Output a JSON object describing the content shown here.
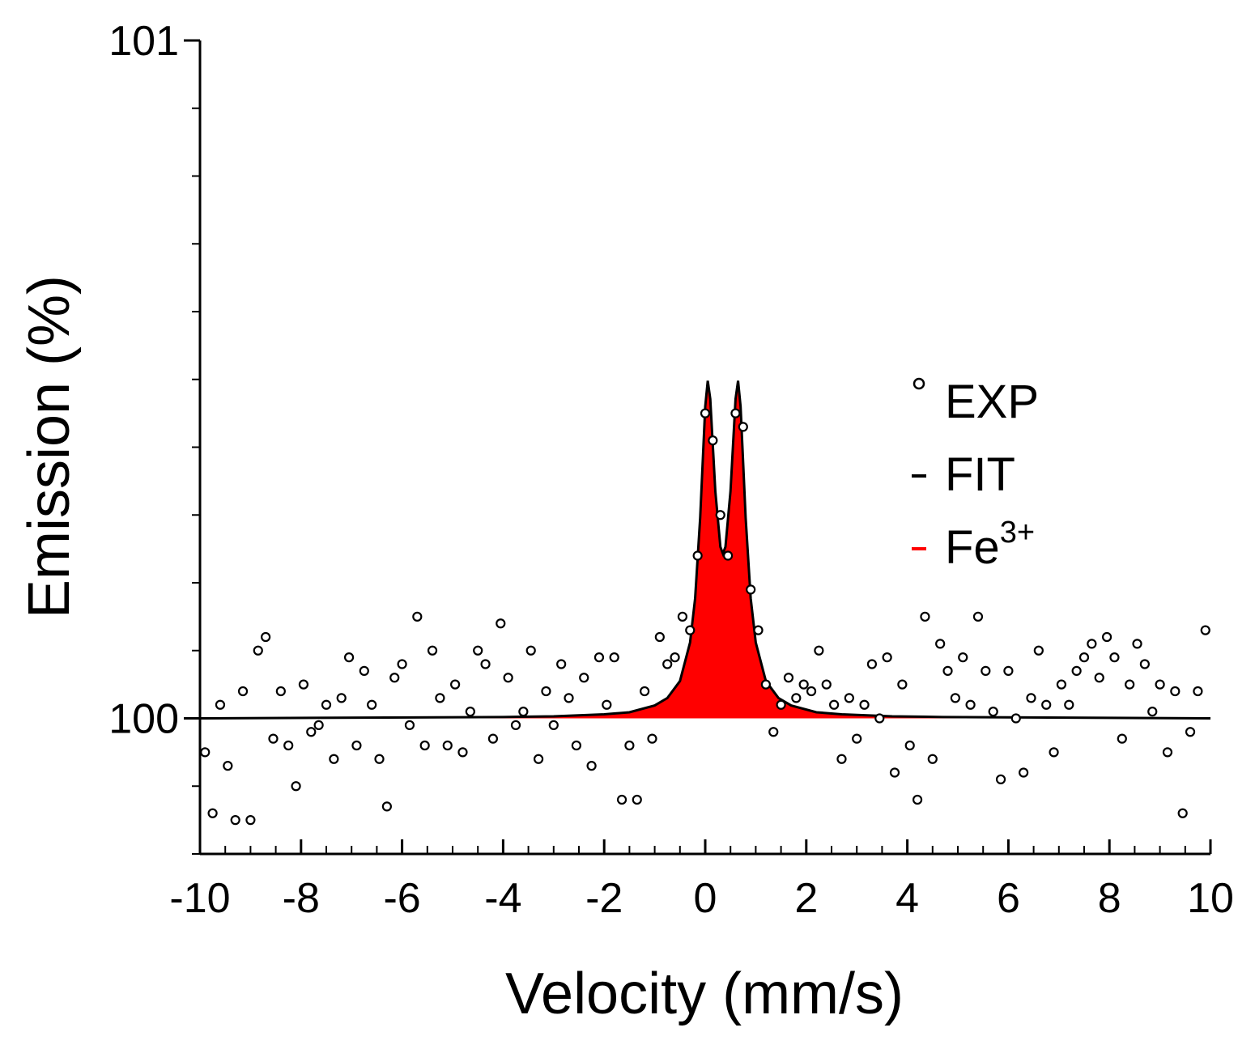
{
  "chart_data": {
    "type": "scatter",
    "xlabel": "Velocity (mm/s)",
    "ylabel": "Emission (%)",
    "xlim": [
      -10,
      10
    ],
    "xticks": [
      -10,
      -8,
      -6,
      -4,
      -2,
      0,
      2,
      4,
      6,
      8,
      10
    ],
    "xminorticks": [
      -9.5,
      -9,
      -8.5,
      -7.5,
      -7,
      -6.5,
      -5.5,
      -5,
      -4.5,
      -3.5,
      -3,
      -2.5,
      -1.5,
      -1,
      -0.5,
      0.5,
      1,
      1.5,
      2.5,
      3,
      3.5,
      4.5,
      5,
      5.5,
      6.5,
      7,
      7.5,
      8.5,
      9,
      9.5
    ],
    "ylim": [
      99.8,
      101
    ],
    "yticks": [
      100,
      101
    ],
    "yminorticks": [
      99.8,
      99.9,
      100.1,
      100.2,
      100.3,
      100.4,
      100.5,
      100.6,
      100.7,
      100.8,
      100.9
    ],
    "grid": false,
    "legend": "upper right",
    "series": [
      {
        "name": "EXP",
        "style": "markers",
        "color": "#000000",
        "x": [
          -9.9,
          -9.75,
          -9.6,
          -9.45,
          -9.3,
          -9.15,
          -9.0,
          -8.85,
          -8.7,
          -8.55,
          -8.4,
          -8.25,
          -8.1,
          -7.95,
          -7.8,
          -7.65,
          -7.5,
          -7.35,
          -7.2,
          -7.05,
          -6.9,
          -6.75,
          -6.6,
          -6.45,
          -6.3,
          -6.15,
          -6.0,
          -5.85,
          -5.7,
          -5.55,
          -5.4,
          -5.25,
          -5.1,
          -4.95,
          -4.8,
          -4.65,
          -4.5,
          -4.35,
          -4.2,
          -4.05,
          -3.9,
          -3.75,
          -3.6,
          -3.45,
          -3.3,
          -3.15,
          -3.0,
          -2.85,
          -2.7,
          -2.55,
          -2.4,
          -2.25,
          -2.1,
          -1.95,
          -1.8,
          -1.65,
          -1.5,
          -1.35,
          -1.2,
          -1.05,
          -0.9,
          -0.75,
          -0.6,
          -0.45,
          -0.3,
          -0.15,
          0,
          0.15,
          0.3,
          0.45,
          0.6,
          0.75,
          0.9,
          1.05,
          1.2,
          1.35,
          1.5,
          1.65,
          1.8,
          1.95,
          2.1,
          2.25,
          2.4,
          2.55,
          2.7,
          2.85,
          3.0,
          3.15,
          3.3,
          3.45,
          3.6,
          3.75,
          3.9,
          4.05,
          4.2,
          4.35,
          4.5,
          4.65,
          4.8,
          4.95,
          5.1,
          5.25,
          5.4,
          5.55,
          5.7,
          5.85,
          6.0,
          6.15,
          6.3,
          6.45,
          6.6,
          6.75,
          6.9,
          7.05,
          7.2,
          7.35,
          7.5,
          7.65,
          7.8,
          7.95,
          8.1,
          8.25,
          8.4,
          8.55,
          8.7,
          8.85,
          9.0,
          9.15,
          9.3,
          9.45,
          9.6,
          9.75,
          9.9
        ],
        "values": [
          99.95,
          99.86,
          100.02,
          99.93,
          99.85,
          100.04,
          99.85,
          100.1,
          100.12,
          99.97,
          100.04,
          99.96,
          99.9,
          100.05,
          99.98,
          99.99,
          100.02,
          99.94,
          100.03,
          100.09,
          99.96,
          100.07,
          100.02,
          99.94,
          99.87,
          100.06,
          100.08,
          99.99,
          100.15,
          99.96,
          100.1,
          100.03,
          99.96,
          100.05,
          99.95,
          100.01,
          100.1,
          100.08,
          99.97,
          100.14,
          100.06,
          99.99,
          100.01,
          100.1,
          99.94,
          100.04,
          99.99,
          100.08,
          100.03,
          99.96,
          100.06,
          99.93,
          100.09,
          100.02,
          100.09,
          99.88,
          99.96,
          99.88,
          100.04,
          99.97,
          100.12,
          100.08,
          100.09,
          100.15,
          100.13,
          100.24,
          100.45,
          100.41,
          100.3,
          100.24,
          100.45,
          100.43,
          100.19,
          100.13,
          100.05,
          99.98,
          100.02,
          100.06,
          100.03,
          100.05,
          100.04,
          100.1,
          100.05,
          100.02,
          99.94,
          100.03,
          99.97,
          100.02,
          100.08,
          100.0,
          100.09,
          99.92,
          100.05,
          99.96,
          99.88,
          100.15,
          99.94,
          100.11,
          100.07,
          100.03,
          100.09,
          100.02,
          100.15,
          100.07,
          100.01,
          99.91,
          100.07,
          100.0,
          99.92,
          100.03,
          100.1,
          100.02,
          99.95,
          100.05,
          100.02,
          100.07,
          100.09,
          100.11,
          100.06,
          100.12,
          100.09,
          99.97,
          100.05,
          100.11,
          100.08,
          100.01,
          100.05,
          99.95,
          100.04,
          99.86,
          99.98,
          100.04,
          100.13
        ]
      },
      {
        "name": "FIT",
        "style": "line",
        "color": "#000000",
        "x": [
          -10,
          -4,
          -3,
          -2,
          -1.5,
          -1,
          -0.75,
          -0.5,
          -0.3,
          -0.2,
          -0.1,
          0,
          0.05,
          0.1,
          0.2,
          0.3,
          0.35,
          0.4,
          0.5,
          0.6,
          0.65,
          0.7,
          0.8,
          0.9,
          1,
          1.2,
          1.45,
          1.7,
          2.2,
          2.7,
          3.7,
          4.7,
          10
        ],
        "values": [
          100.0,
          100.002,
          100.003,
          100.006,
          100.009,
          100.019,
          100.03,
          100.055,
          100.112,
          100.177,
          100.296,
          100.46,
          100.498,
          100.471,
          100.335,
          100.253,
          100.243,
          100.253,
          100.335,
          100.471,
          100.498,
          100.46,
          100.296,
          100.177,
          100.112,
          100.055,
          100.03,
          100.019,
          100.009,
          100.006,
          100.003,
          100.002,
          100.0
        ]
      },
      {
        "name": "Fe3+",
        "style": "area",
        "color": "#ff0000",
        "x": [
          -10,
          -4,
          -3,
          -2,
          -1.5,
          -1,
          -0.75,
          -0.5,
          -0.3,
          -0.2,
          -0.1,
          0,
          0.05,
          0.1,
          0.2,
          0.3,
          0.35,
          0.4,
          0.5,
          0.6,
          0.65,
          0.7,
          0.8,
          0.9,
          1,
          1.2,
          1.45,
          1.7,
          2.2,
          2.7,
          3.7,
          4.7,
          10
        ],
        "values": [
          100.0,
          100.002,
          100.003,
          100.006,
          100.009,
          100.019,
          100.03,
          100.055,
          100.112,
          100.177,
          100.296,
          100.46,
          100.498,
          100.471,
          100.335,
          100.253,
          100.243,
          100.253,
          100.335,
          100.471,
          100.498,
          100.46,
          100.296,
          100.177,
          100.112,
          100.055,
          100.03,
          100.019,
          100.009,
          100.006,
          100.003,
          100.002,
          100.0
        ]
      }
    ]
  }
}
